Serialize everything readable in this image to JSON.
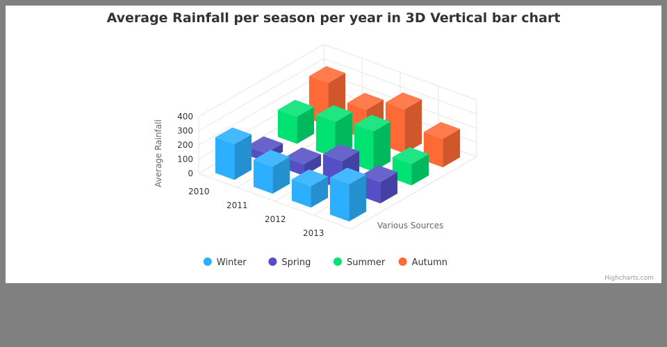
{
  "chart_data": {
    "type": "bar",
    "title": "Average Rainfall per season per year in 3D Vertical bar chart",
    "categories": [
      "2010",
      "2011",
      "2012",
      "2013"
    ],
    "series": [
      {
        "name": "Winter",
        "color": "#2caffe",
        "values": [
          250,
          190,
          150,
          260
        ]
      },
      {
        "name": "Spring",
        "color": "#544fc5",
        "values": [
          60,
          80,
          200,
          150
        ]
      },
      {
        "name": "Summer",
        "color": "#00e272",
        "values": [
          190,
          250,
          280,
          150
        ]
      },
      {
        "name": "Autumn",
        "color": "#fe6a35",
        "values": [
          300,
          210,
          310,
          200
        ]
      }
    ],
    "yticks": [
      "0",
      "100",
      "200",
      "300",
      "400"
    ],
    "ylim": [
      0,
      400
    ],
    "ylabel": "Average Rainfall",
    "zlabel": "Various Sources",
    "legend_position": "bottom-center",
    "grid": true
  },
  "credits": "Highcharts.com"
}
